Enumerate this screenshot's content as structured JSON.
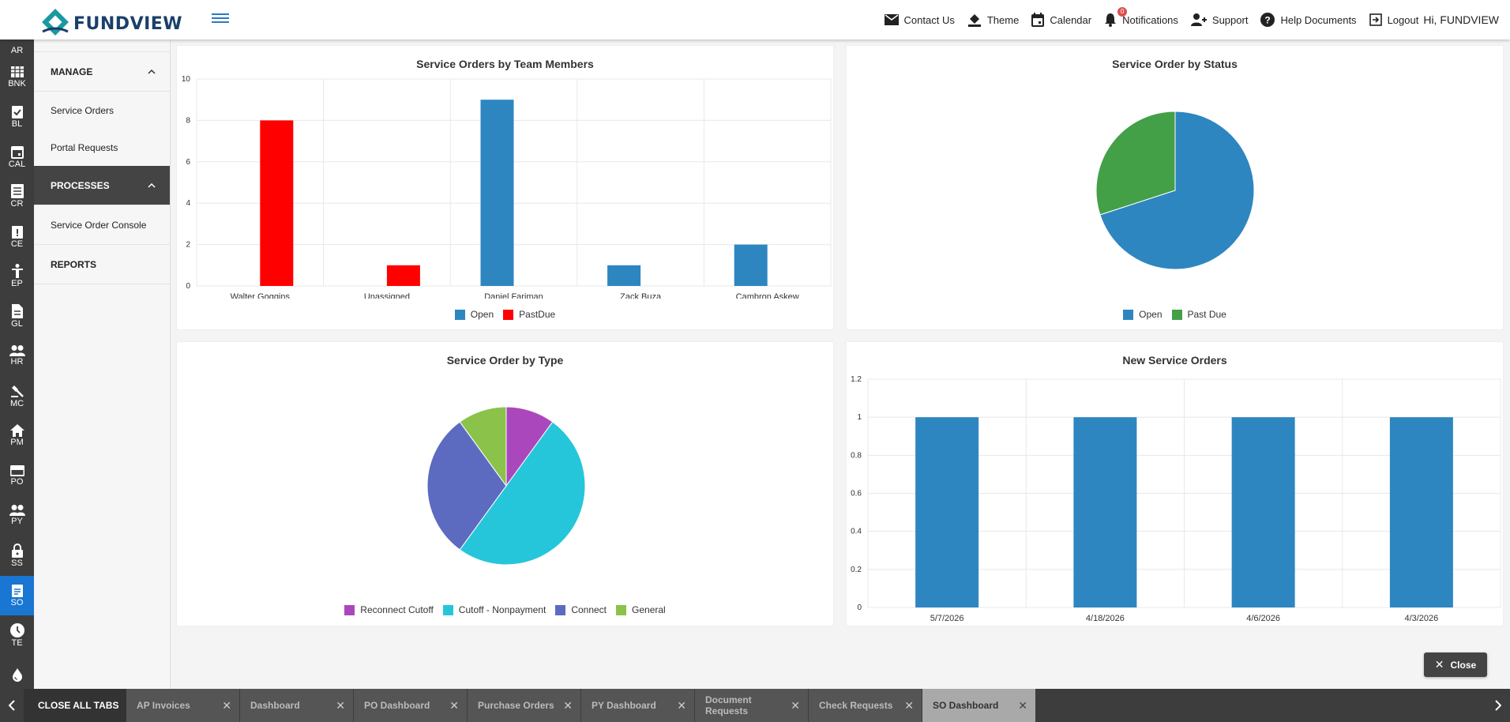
{
  "app": {
    "logo_text": "FUNDVIEW"
  },
  "topnav": {
    "contact": "Contact Us",
    "theme": "Theme",
    "calendar": "Calendar",
    "notifications": "Notifications",
    "notification_count": "0",
    "support": "Support",
    "help": "Help Documents",
    "logout": "Logout",
    "greeting": "Hi, FUNDVIEW"
  },
  "rail": [
    {
      "label": "AR",
      "icon": "ar-icon"
    },
    {
      "label": "BNK",
      "icon": "bank-icon"
    },
    {
      "label": "BL",
      "icon": "clipboard-check-icon"
    },
    {
      "label": "CAL",
      "icon": "calendar-icon"
    },
    {
      "label": "CR",
      "icon": "list-icon"
    },
    {
      "label": "CE",
      "icon": "clipboard-alert-icon"
    },
    {
      "label": "EP",
      "icon": "person-icon"
    },
    {
      "label": "GL",
      "icon": "document-icon"
    },
    {
      "label": "HR",
      "icon": "people-icon"
    },
    {
      "label": "MC",
      "icon": "gavel-icon"
    },
    {
      "label": "PM",
      "icon": "home-icon"
    },
    {
      "label": "PO",
      "icon": "card-icon"
    },
    {
      "label": "PY",
      "icon": "people-icon"
    },
    {
      "label": "SS",
      "icon": "lock-icon"
    },
    {
      "label": "SO",
      "icon": "assignment-icon"
    },
    {
      "label": "TE",
      "icon": "clock-icon"
    },
    {
      "label": "",
      "icon": "drop-icon"
    }
  ],
  "subnav": {
    "manage": "MANAGE",
    "service_orders": "Service Orders",
    "portal_requests": "Portal Requests",
    "processes": "PROCESSES",
    "console": "Service Order Console",
    "reports": "REPORTS"
  },
  "charts": {
    "team": {
      "title": "Service Orders by Team Members",
      "categories": [
        "Walter Goggins",
        "Unassigned",
        "Daniel Fariman",
        "Zack Buza",
        "Cambron Askew"
      ],
      "series": [
        {
          "name": "Open",
          "color": "#2e86c1",
          "values": [
            0,
            0,
            9,
            1,
            2
          ]
        },
        {
          "name": "PastDue",
          "color": "#ff0000",
          "values": [
            8,
            1,
            0,
            0,
            0
          ]
        }
      ],
      "ylim": [
        0,
        10
      ],
      "yticks": [
        "0",
        "2",
        "4",
        "6",
        "8",
        "10"
      ]
    },
    "status": {
      "title": "Service Order by Status",
      "slices": [
        {
          "name": "Open",
          "color": "#2e86c1",
          "value": 70
        },
        {
          "name": "Past Due",
          "color": "#43a047",
          "value": 30
        }
      ]
    },
    "type": {
      "title": "Service Order by Type",
      "slices": [
        {
          "name": "Reconnect Cutoff",
          "color": "#ab47bc",
          "value": 1
        },
        {
          "name": "Cutoff - Nonpayment",
          "color": "#26c6da",
          "value": 5
        },
        {
          "name": "Connect",
          "color": "#5c6bc0",
          "value": 3
        },
        {
          "name": "General",
          "color": "#8bc34a",
          "value": 1
        }
      ]
    },
    "new": {
      "title": "New Service Orders",
      "categories": [
        "5/7/2026",
        "4/18/2026",
        "4/6/2026",
        "4/3/2026"
      ],
      "values": [
        1,
        1,
        1,
        1
      ],
      "color": "#2e86c1",
      "ylim": [
        0,
        1.2
      ],
      "yticks": [
        "0",
        "0.2",
        "0.4",
        "0.6",
        "0.8",
        "1",
        "1.2"
      ]
    }
  },
  "chart_data": [
    {
      "type": "bar",
      "title": "Service Orders by Team Members",
      "categories": [
        "Walter Goggins",
        "Unassigned",
        "Daniel Fariman",
        "Zack Buza",
        "Cambron Askew"
      ],
      "series": [
        {
          "name": "Open",
          "values": [
            0,
            0,
            9,
            1,
            2
          ]
        },
        {
          "name": "PastDue",
          "values": [
            8,
            1,
            0,
            0,
            0
          ]
        }
      ],
      "ylim": [
        0,
        10
      ],
      "grid": true,
      "legend": "bottom"
    },
    {
      "type": "pie",
      "title": "Service Order by Status",
      "labels": [
        "Open",
        "Past Due"
      ],
      "values": [
        70,
        30
      ],
      "legend": "bottom"
    },
    {
      "type": "pie",
      "title": "Service Order by Type",
      "labels": [
        "Reconnect Cutoff",
        "Cutoff - Nonpayment",
        "Connect",
        "General"
      ],
      "values": [
        1,
        5,
        3,
        1
      ],
      "legend": "bottom"
    },
    {
      "type": "bar",
      "title": "New Service Orders",
      "categories": [
        "5/7/2026",
        "4/18/2026",
        "4/6/2026",
        "4/3/2026"
      ],
      "values": [
        1,
        1,
        1,
        1
      ],
      "ylim": [
        0,
        1.2
      ],
      "grid": true
    }
  ],
  "close_button": "Close",
  "tabs": {
    "close_all": "CLOSE ALL TABS",
    "items": [
      "AP Invoices",
      "Dashboard",
      "PO Dashboard",
      "Purchase Orders",
      "PY Dashboard",
      "Document Requests",
      "Check Requests",
      "SO Dashboard"
    ],
    "active": "SO Dashboard"
  }
}
